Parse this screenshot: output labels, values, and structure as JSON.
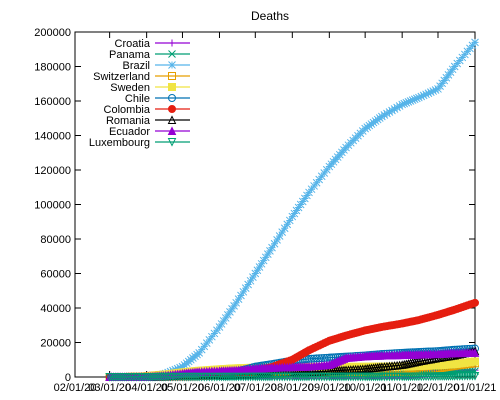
{
  "chart_data": {
    "type": "line",
    "title": "Deaths",
    "xlabel": "",
    "ylabel": "",
    "x_start": "02/01/20",
    "x_end": "01/01/21",
    "x_ticks": [
      "02/01/20",
      "03/01/20",
      "04/01/20",
      "05/01/20",
      "06/01/20",
      "07/01/20",
      "08/01/20",
      "09/01/20",
      "10/01/20",
      "11/01/20",
      "12/01/20",
      "01/01/21"
    ],
    "ylim": [
      0,
      200000
    ],
    "y_ticks": [
      0,
      20000,
      40000,
      60000,
      80000,
      100000,
      120000,
      140000,
      160000,
      180000,
      200000
    ],
    "y_tick_labels": [
      "0",
      "20000",
      "40000",
      "60000",
      "80000",
      "100000",
      "120000",
      "140000",
      "160000",
      "180000",
      "200000"
    ],
    "legend_position": "top-left",
    "grid": false,
    "x": [
      "03/01/20",
      "03/15/20",
      "04/01/20",
      "04/15/20",
      "05/01/20",
      "05/15/20",
      "06/01/20",
      "06/15/20",
      "07/01/20",
      "07/15/20",
      "08/01/20",
      "08/15/20",
      "09/01/20",
      "09/15/20",
      "10/01/20",
      "10/15/20",
      "11/01/20",
      "11/15/20",
      "12/01/20",
      "12/15/20",
      "01/01/21"
    ],
    "series": [
      {
        "name": "Croatia",
        "color": "#9400d3",
        "marker": "plus",
        "values": [
          0,
          0,
          10,
          30,
          80,
          100,
          105,
          107,
          110,
          125,
          140,
          175,
          210,
          260,
          340,
          500,
          800,
          1400,
          2100,
          2800,
          4000
        ]
      },
      {
        "name": "Panama",
        "color": "#009e73",
        "marker": "cross",
        "values": [
          0,
          0,
          10,
          100,
          200,
          300,
          400,
          600,
          900,
          1200,
          1700,
          2100,
          2400,
          2600,
          2700,
          2800,
          2900,
          3000,
          3100,
          3200,
          3400
        ]
      },
      {
        "name": "Brazil",
        "color": "#56b4e9",
        "marker": "star",
        "values": [
          0,
          0,
          200,
          1500,
          6000,
          14000,
          29000,
          43000,
          60000,
          75000,
          93000,
          107000,
          122000,
          133000,
          144000,
          151000,
          158000,
          162000,
          167000,
          180000,
          194000
        ]
      },
      {
        "name": "Switzerland",
        "color": "#e69f00",
        "marker": "square",
        "values": [
          0,
          0,
          400,
          1300,
          1700,
          1850,
          1900,
          1950,
          1970,
          1980,
          2000,
          2010,
          2030,
          2050,
          2100,
          2200,
          2600,
          3600,
          5000,
          6500,
          8000
        ]
      },
      {
        "name": "Sweden",
        "color": "#f0e442",
        "marker": "square-filled",
        "values": [
          0,
          0,
          200,
          1200,
          2600,
          3600,
          4400,
          5000,
          5400,
          5600,
          5700,
          5800,
          5850,
          5870,
          5900,
          5950,
          6100,
          6400,
          6800,
          7500,
          9000
        ]
      },
      {
        "name": "Chile",
        "color": "#0072b2",
        "marker": "circle",
        "values": [
          0,
          0,
          10,
          100,
          250,
          500,
          1100,
          3000,
          6000,
          7500,
          9500,
          10500,
          11200,
          11800,
          12500,
          13300,
          14000,
          14500,
          15000,
          15800,
          16500
        ]
      },
      {
        "name": "Colombia",
        "color": "#e51e10",
        "marker": "circle-filled",
        "values": [
          0,
          0,
          20,
          100,
          250,
          400,
          900,
          1800,
          3300,
          5800,
          10000,
          15500,
          21000,
          24000,
          27000,
          29000,
          31000,
          33000,
          36000,
          39000,
          43000
        ]
      },
      {
        "name": "Romania",
        "color": "#000000",
        "marker": "triangle",
        "values": [
          0,
          0,
          10,
          400,
          900,
          1100,
          1300,
          1500,
          1700,
          2000,
          2400,
          2800,
          3400,
          4000,
          4700,
          5800,
          7000,
          9000,
          11000,
          12500,
          15000
        ]
      },
      {
        "name": "Ecuador",
        "color": "#9400d3",
        "marker": "triangle-filled",
        "values": [
          0,
          0,
          100,
          700,
          2000,
          3000,
          3500,
          3900,
          4800,
          5300,
          5700,
          6000,
          7000,
          11000,
          12000,
          12400,
          12700,
          13000,
          13300,
          13800,
          14000
        ]
      },
      {
        "name": "Luxembourg",
        "color": "#009e73",
        "marker": "triangle-down",
        "values": [
          0,
          0,
          10,
          50,
          90,
          100,
          105,
          107,
          110,
          112,
          120,
          125,
          125,
          127,
          130,
          150,
          200,
          300,
          400,
          500,
          600
        ]
      }
    ]
  }
}
